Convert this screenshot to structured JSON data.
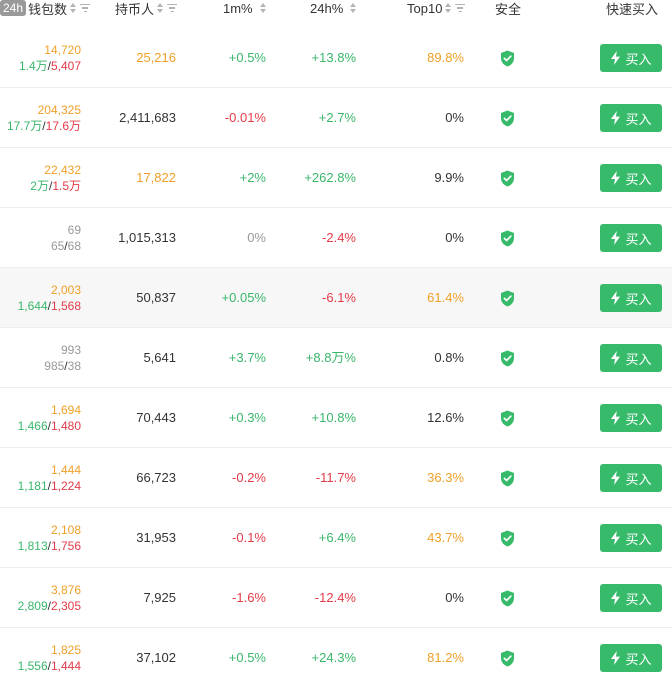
{
  "header": {
    "badge": "24h",
    "wallets_label": "钱包数",
    "holders_label": "持币人",
    "change_1m_label": "1m%",
    "change_24h_label": "24h%",
    "top10_label": "Top10",
    "safety_label": "安全",
    "quick_buy_label": "快速买入"
  },
  "colors": {
    "orange": "#f0a028",
    "green": "#3ab66b",
    "red": "#e23a47",
    "gray": "#999999",
    "buy_button": "#38ba6b",
    "highlight_row": "#f7f7f7"
  },
  "buy_label": "买入",
  "icons": {
    "safety": "shield-check-icon",
    "buy": "lightning-icon",
    "sort": "sort-icon",
    "filter": "filter-icon"
  },
  "rows": [
    {
      "wallets": "14,720",
      "buys": "1.4万",
      "sells": "5,407",
      "holders": "25,216",
      "change_1m": "+0.5%",
      "change_24h": "+13.8%",
      "top10": "89.8%",
      "wallets_color": "orange",
      "holders_color": "orange",
      "m1_color": "green",
      "h24_color": "green",
      "top10_color": "orange"
    },
    {
      "wallets": "204,325",
      "buys": "17.7万",
      "sells": "17.6万",
      "holders": "2,411,683",
      "change_1m": "-0.01%",
      "change_24h": "+2.7%",
      "top10": "0%",
      "wallets_color": "orange",
      "holders_color": "dark",
      "m1_color": "red",
      "h24_color": "green",
      "top10_color": "dark"
    },
    {
      "wallets": "22,432",
      "buys": "2万",
      "sells": "1.5万",
      "holders": "17,822",
      "change_1m": "+2%",
      "change_24h": "+262.8%",
      "top10": "9.9%",
      "wallets_color": "orange",
      "holders_color": "orange",
      "m1_color": "green",
      "h24_color": "green",
      "top10_color": "dark"
    },
    {
      "wallets": "69",
      "buys": "65",
      "sells": "68",
      "holders": "1,015,313",
      "change_1m": "0%",
      "change_24h": "-2.4%",
      "top10": "0%",
      "wallets_color": "gray",
      "holders_color": "dark",
      "m1_color": "gray",
      "h24_color": "red",
      "top10_color": "dark",
      "counts_gray": true
    },
    {
      "wallets": "2,003",
      "buys": "1,644",
      "sells": "1,568",
      "holders": "50,837",
      "change_1m": "+0.05%",
      "change_24h": "-6.1%",
      "top10": "61.4%",
      "wallets_color": "orange",
      "holders_color": "dark",
      "m1_color": "green",
      "h24_color": "red",
      "top10_color": "orange",
      "highlight": true
    },
    {
      "wallets": "993",
      "buys": "985",
      "sells": "38",
      "holders": "5,641",
      "change_1m": "+3.7%",
      "change_24h": "+8.8万%",
      "top10": "0.8%",
      "wallets_color": "gray",
      "holders_color": "dark",
      "m1_color": "green",
      "h24_color": "green",
      "top10_color": "dark",
      "counts_gray": true
    },
    {
      "wallets": "1,694",
      "buys": "1,466",
      "sells": "1,480",
      "holders": "70,443",
      "change_1m": "+0.3%",
      "change_24h": "+10.8%",
      "top10": "12.6%",
      "wallets_color": "orange",
      "holders_color": "dark",
      "m1_color": "green",
      "h24_color": "green",
      "top10_color": "dark"
    },
    {
      "wallets": "1,444",
      "buys": "1,181",
      "sells": "1,224",
      "holders": "66,723",
      "change_1m": "-0.2%",
      "change_24h": "-11.7%",
      "top10": "36.3%",
      "wallets_color": "orange",
      "holders_color": "dark",
      "m1_color": "red",
      "h24_color": "red",
      "top10_color": "orange"
    },
    {
      "wallets": "2,108",
      "buys": "1,813",
      "sells": "1,756",
      "holders": "31,953",
      "change_1m": "-0.1%",
      "change_24h": "+6.4%",
      "top10": "43.7%",
      "wallets_color": "orange",
      "holders_color": "dark",
      "m1_color": "red",
      "h24_color": "green",
      "top10_color": "orange"
    },
    {
      "wallets": "3,876",
      "buys": "2,809",
      "sells": "2,305",
      "holders": "7,925",
      "change_1m": "-1.6%",
      "change_24h": "-12.4%",
      "top10": "0%",
      "wallets_color": "orange",
      "holders_color": "dark",
      "m1_color": "red",
      "h24_color": "red",
      "top10_color": "dark"
    },
    {
      "wallets": "1,825",
      "buys": "1,556",
      "sells": "1,444",
      "holders": "37,102",
      "change_1m": "+0.5%",
      "change_24h": "+24.3%",
      "top10": "81.2%",
      "wallets_color": "orange",
      "holders_color": "dark",
      "m1_color": "green",
      "h24_color": "green",
      "top10_color": "orange"
    }
  ]
}
